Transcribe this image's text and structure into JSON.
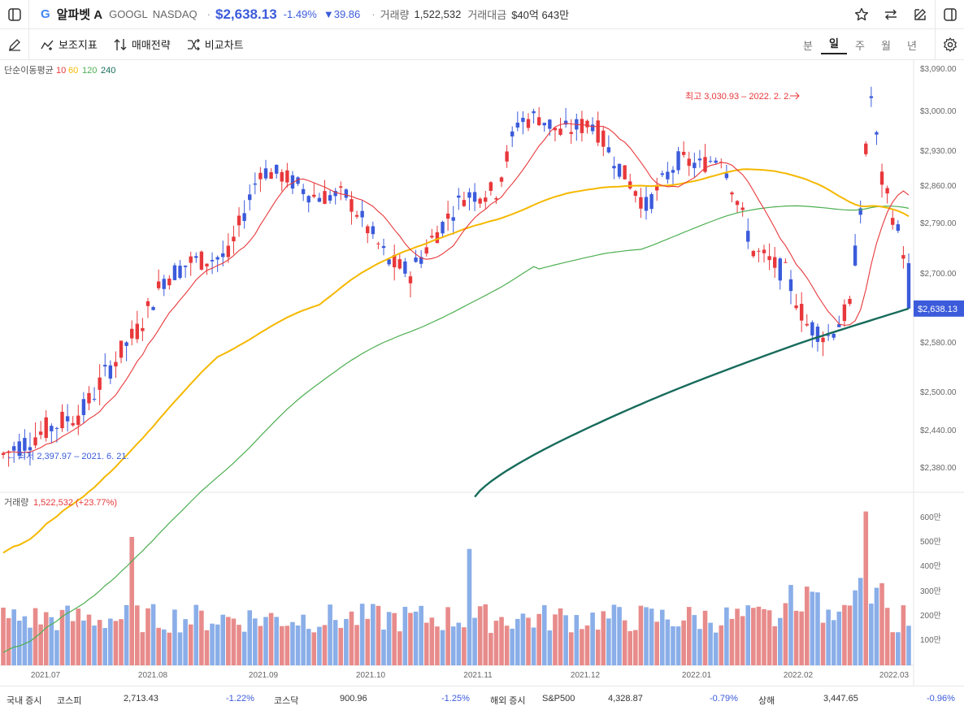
{
  "header": {
    "stock_name": "알파벳 A",
    "ticker": "GOOGL",
    "exchange": "NASDAQ",
    "price": "$2,638.13",
    "change_pct": "-1.49%",
    "change_abs": "▼39.86",
    "volume_label": "거래량",
    "volume": "1,522,532",
    "amount_label": "거래대금",
    "amount": "$40억 643만"
  },
  "toolbar": {
    "indicator_label": "보조지표",
    "strategy_label": "매매전략",
    "compare_label": "비교차트",
    "periods": [
      "분",
      "일",
      "주",
      "월",
      "년"
    ],
    "active_period": "일"
  },
  "chart_data": {
    "type": "candlestick",
    "ma_label": "단순이동평균",
    "ma_periods": [
      "10",
      "60",
      "120",
      "240"
    ],
    "ma_colors": [
      "#e8383b",
      "#f5b800",
      "#4caf50",
      "#176b5b"
    ],
    "y_ticks": [
      "$3,090.00",
      "$3,000.00",
      "$2,930.00",
      "$2,860.00",
      "$2,790.00",
      "$2,700.00",
      "$2,580.00",
      "$2,500.00",
      "$2,440.00",
      "$2,380.00"
    ],
    "y_tick_values": [
      3090,
      3000,
      2930,
      2860,
      2790,
      2700,
      2580,
      2500,
      2440,
      2380
    ],
    "x_ticks": [
      "2021.07",
      "2021.08",
      "2021.09",
      "2021.10",
      "2021.11",
      "2021.12",
      "2022.01",
      "2022.02",
      "2022.03"
    ],
    "high_annotation": "최고 3,030.93 – 2022. 2. 2.",
    "low_annotation": "← 최저 2,397.97 – 2021. 6. 21.",
    "current_price": "$2,638.13",
    "current_value": 2638.13,
    "volume_label": "거래량",
    "volume_value": "1,522,532 (+23.77%)",
    "volume_ticks": [
      "600만",
      "500만",
      "400만",
      "300만",
      "200만",
      "100만"
    ],
    "up_color": "#e8383b",
    "down_color": "#3b5bdb"
  },
  "footer": {
    "domestic_label": "국내 증시",
    "kospi_label": "코스피",
    "kospi": "2,713.43",
    "kospi_chg": "-1.22%",
    "kosdaq_label": "코스닥",
    "kosdaq": "900.96",
    "kosdaq_chg": "-1.25%",
    "overseas_label": "해외 증시",
    "sp_label": "S&P500",
    "sp": "4,328.87",
    "sp_chg": "-0.79%",
    "sh_label": "상해",
    "sh": "3,447.65",
    "sh_chg": "-0.96%"
  }
}
